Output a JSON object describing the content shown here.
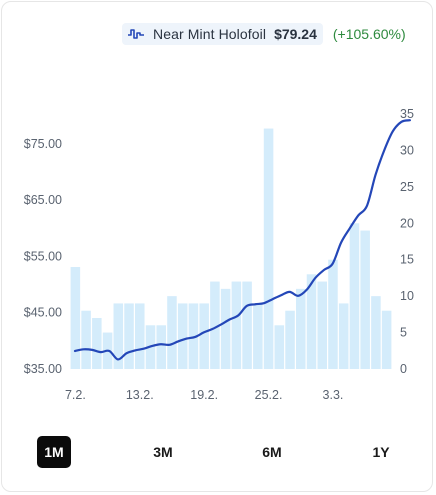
{
  "legend": {
    "icon": "step-line-icon",
    "label": "Near Mint Holofoil",
    "price": "$79.24",
    "change": "(+105.60%)",
    "line_color": "#2447b8",
    "change_color": "#2e8a3e"
  },
  "range_buttons": [
    {
      "label": "1M",
      "active": true
    },
    {
      "label": "3M",
      "active": false
    },
    {
      "label": "6M",
      "active": false
    },
    {
      "label": "1Y",
      "active": false
    }
  ],
  "chart_data": {
    "type": "line",
    "bar_color": "#d4ecfb",
    "line_color": "#2447b8",
    "x_ticks": [
      "7.2.",
      "13.2.",
      "19.2.",
      "25.2.",
      "3.3."
    ],
    "x_tick_index": [
      0,
      6,
      12,
      18,
      24
    ],
    "y_left": {
      "ticks": [
        "$35.00",
        "$45.00",
        "$55.00",
        "$65.00",
        "$75.00"
      ],
      "values": [
        35,
        45,
        55,
        65,
        75
      ],
      "range": [
        35,
        79.24
      ]
    },
    "y_right": {
      "ticks": [
        "0",
        "5",
        "10",
        "15",
        "20",
        "25",
        "30",
        "35"
      ],
      "values": [
        0,
        5,
        10,
        15,
        20,
        25,
        30,
        35
      ],
      "range": [
        0,
        35
      ]
    },
    "series": [
      {
        "name": "Near Mint Holofoil",
        "axis": "left",
        "kind": "line",
        "x": [
          0,
          0.8,
          1.6,
          2.4,
          3.2,
          4.0,
          4.8,
          5.6,
          6.4,
          7.2,
          8.0,
          8.8,
          9.6,
          10.4,
          11.2,
          12.0,
          12.8,
          13.6,
          14.4,
          15.2,
          16.0,
          16.8,
          17.6,
          18.4,
          19.2,
          20.0,
          20.8,
          21.6,
          22.4,
          23.2,
          24.0,
          24.8,
          25.6,
          26.4,
          27.2,
          28.0,
          28.8,
          29.6,
          30.4,
          31.2
        ],
        "values": [
          38.2,
          38.5,
          38.4,
          38.0,
          38.2,
          36.7,
          37.8,
          38.3,
          38.6,
          39.1,
          39.4,
          39.3,
          39.9,
          40.4,
          40.7,
          41.5,
          42.1,
          42.9,
          43.8,
          44.5,
          46.2,
          46.5,
          46.7,
          47.4,
          48.1,
          48.7,
          48.0,
          49.1,
          51.2,
          52.6,
          53.7,
          57.5,
          60.0,
          62.3,
          64.0,
          69.5,
          73.8,
          77.2,
          78.9,
          79.2
        ]
      },
      {
        "name": "Volume",
        "axis": "right",
        "kind": "bar",
        "values": [
          14,
          8,
          7,
          5,
          9,
          9,
          9,
          6,
          6,
          10,
          9,
          9,
          9,
          12,
          11,
          12,
          12,
          9,
          33,
          6,
          8,
          11,
          13,
          12,
          15,
          9,
          20,
          19,
          10,
          8
        ]
      }
    ]
  }
}
